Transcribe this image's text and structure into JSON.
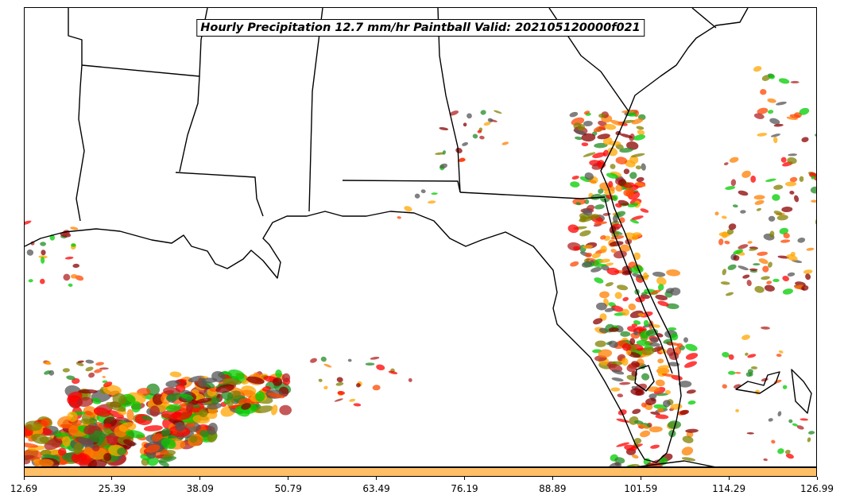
{
  "title": "Hourly Precipitation 12.7 mm/hr Paintball Valid: 202105120000f021",
  "colorbar": {
    "color": "#ffbf66",
    "tick_labels": [
      "12.69",
      "25.39",
      "38.09",
      "50.79",
      "63.49",
      "76.19",
      "88.89",
      "101.59",
      "114.29",
      "126.99"
    ]
  },
  "paintball_colors": [
    "#ff0000",
    "#ff7f00",
    "#ffa500",
    "#00cc00",
    "#228b22",
    "#8b0000",
    "#808000",
    "#b22222",
    "#555555",
    "#ff4500"
  ],
  "map_features": [
    "coastline",
    "state-borders"
  ]
}
